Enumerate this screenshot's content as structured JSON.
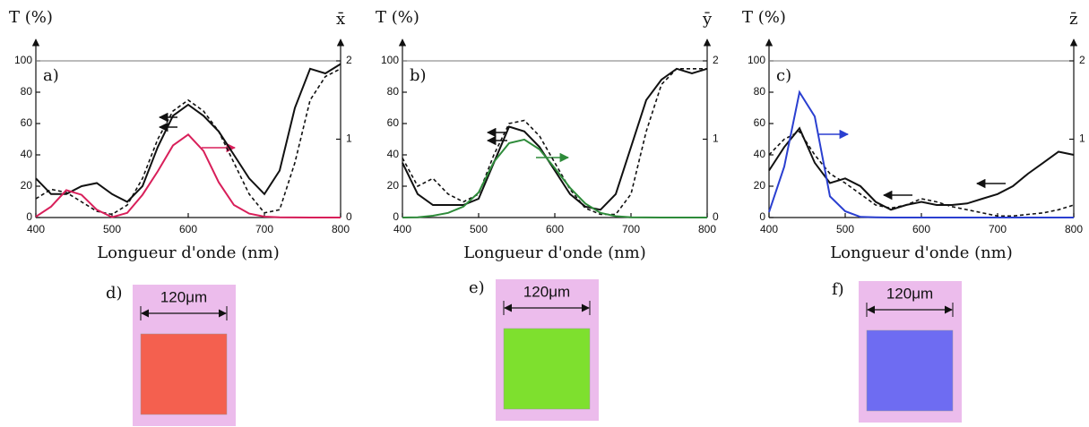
{
  "chart_data": [
    {
      "type": "line",
      "panel": "a)",
      "ylabel": "T (%)",
      "y2label": "x̄",
      "xlabel": "Longueur d'onde (nm)",
      "x": [
        400,
        420,
        440,
        460,
        480,
        500,
        520,
        540,
        560,
        580,
        600,
        620,
        640,
        660,
        680,
        700,
        720,
        740,
        760,
        780,
        800
      ],
      "xlim": [
        400,
        800
      ],
      "xticks": [
        400,
        500,
        600,
        700,
        800
      ],
      "ylim": [
        0,
        100
      ],
      "yticks": [
        0,
        20,
        40,
        60,
        80,
        100
      ],
      "y2lim": [
        0,
        2
      ],
      "y2ticks": [
        0,
        1,
        2
      ],
      "series": [
        {
          "color": "#111111",
          "dashed": false,
          "values": [
            25,
            15,
            15,
            20,
            22,
            15,
            10,
            20,
            45,
            65,
            72,
            65,
            55,
            40,
            25,
            15,
            30,
            70,
            95,
            92,
            98
          ]
        },
        {
          "color": "#111111",
          "dashed": true,
          "values": [
            12,
            18,
            16,
            10,
            4,
            2,
            8,
            25,
            50,
            68,
            75,
            68,
            55,
            35,
            15,
            3,
            5,
            35,
            75,
            90,
            95
          ]
        },
        {
          "color": "#d81f5a",
          "dashed": false,
          "axis": "y2",
          "values": [
            0.01,
            0.14,
            0.35,
            0.29,
            0.1,
            0.005,
            0.06,
            0.29,
            0.59,
            0.92,
            1.06,
            0.85,
            0.45,
            0.16,
            0.05,
            0.011,
            0.003,
            0.001,
            0,
            0,
            0
          ]
        }
      ]
    },
    {
      "type": "line",
      "panel": "b)",
      "ylabel": "T (%)",
      "y2label": "ȳ",
      "xlabel": "Longueur d'onde (nm)",
      "x": [
        400,
        420,
        440,
        460,
        480,
        500,
        520,
        540,
        560,
        580,
        600,
        620,
        640,
        660,
        680,
        700,
        720,
        740,
        760,
        780,
        800
      ],
      "xlim": [
        400,
        800
      ],
      "xticks": [
        400,
        500,
        600,
        700,
        800
      ],
      "ylim": [
        0,
        100
      ],
      "yticks": [
        0,
        20,
        40,
        60,
        80,
        100
      ],
      "y2lim": [
        0,
        2
      ],
      "y2ticks": [
        0,
        1,
        2
      ],
      "series": [
        {
          "color": "#111111",
          "dashed": false,
          "values": [
            35,
            15,
            8,
            8,
            8,
            12,
            35,
            58,
            55,
            45,
            30,
            15,
            7,
            5,
            15,
            45,
            75,
            88,
            95,
            92,
            95
          ]
        },
        {
          "color": "#111111",
          "dashed": true,
          "values": [
            38,
            20,
            25,
            15,
            10,
            15,
            40,
            60,
            62,
            52,
            35,
            18,
            6,
            2,
            2,
            15,
            55,
            85,
            95,
            95,
            95
          ]
        },
        {
          "color": "#2e8b3a",
          "dashed": false,
          "axis": "y2",
          "values": [
            0,
            0.004,
            0.023,
            0.06,
            0.14,
            0.32,
            0.71,
            0.95,
            0.995,
            0.87,
            0.63,
            0.38,
            0.18,
            0.06,
            0.017,
            0.004,
            0.001,
            0,
            0,
            0,
            0
          ]
        }
      ]
    },
    {
      "type": "line",
      "panel": "c)",
      "ylabel": "T (%)",
      "y2label": "z̄",
      "xlabel": "Longueur d'onde (nm)",
      "x": [
        400,
        420,
        440,
        460,
        480,
        500,
        520,
        540,
        560,
        580,
        600,
        620,
        640,
        660,
        680,
        700,
        720,
        740,
        760,
        780,
        800
      ],
      "xlim": [
        400,
        800
      ],
      "xticks": [
        400,
        500,
        600,
        700,
        800
      ],
      "ylim": [
        0,
        100
      ],
      "yticks": [
        0,
        20,
        40,
        60,
        80,
        100
      ],
      "y2lim": [
        0,
        2
      ],
      "y2ticks": [
        1,
        2
      ],
      "series": [
        {
          "color": "#111111",
          "dashed": false,
          "values": [
            30,
            45,
            57,
            35,
            22,
            25,
            20,
            10,
            5,
            8,
            10,
            8,
            8,
            9,
            12,
            15,
            20,
            28,
            35,
            42,
            40
          ]
        },
        {
          "color": "#111111",
          "dashed": true,
          "values": [
            40,
            50,
            55,
            40,
            28,
            22,
            15,
            8,
            6,
            8,
            12,
            10,
            7,
            5,
            3,
            1,
            1,
            2,
            3,
            5,
            8
          ]
        },
        {
          "color": "#2a3fd0",
          "dashed": false,
          "axis": "y2",
          "values": [
            0.07,
            0.65,
            1.6,
            1.29,
            0.27,
            0.08,
            0.008,
            0.002,
            0,
            0,
            0,
            0,
            0,
            0,
            0,
            0,
            0,
            0,
            0,
            0,
            0
          ]
        }
      ]
    }
  ],
  "images": [
    {
      "label": "d)",
      "scale": "120μm",
      "color": "#f4604f"
    },
    {
      "label": "e)",
      "scale": "120μm",
      "color": "#7ee02e"
    },
    {
      "label": "f)",
      "scale": "120μm",
      "color": "#6e6cf2"
    }
  ]
}
